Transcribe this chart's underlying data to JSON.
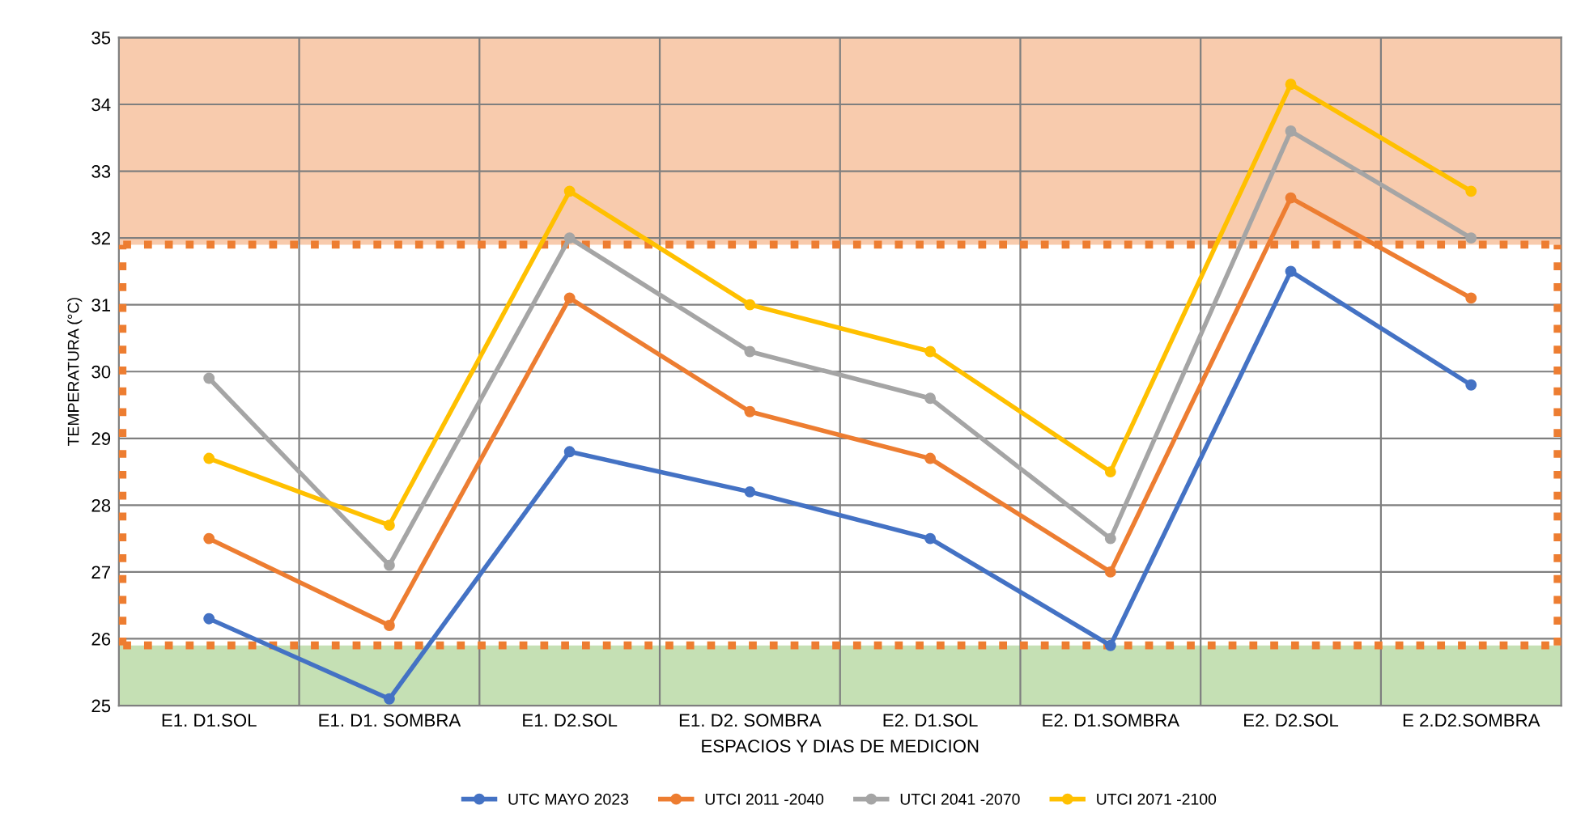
{
  "chart_data": {
    "type": "line",
    "xlabel": "ESPACIOS Y DIAS DE MEDICION",
    "ylabel": "TEMPERATURA (°C)",
    "categories": [
      "E1. D1.SOL",
      "E1. D1. SOMBRA",
      "E1. D2.SOL",
      "E1. D2. SOMBRA",
      "E2. D1.SOL",
      "E2. D1.SOMBRA",
      "E2. D2.SOL",
      "E 2.D2.SOMBRA"
    ],
    "series": [
      {
        "name": "UTC MAYO 2023",
        "color": "#4472c4",
        "values": [
          26.3,
          25.1,
          28.8,
          28.2,
          27.5,
          25.9,
          31.5,
          29.8
        ]
      },
      {
        "name": "UTCI 2011 -2040",
        "color": "#ed7d31",
        "values": [
          27.5,
          26.2,
          31.1,
          29.4,
          28.7,
          27.0,
          32.6,
          31.1
        ]
      },
      {
        "name": "UTCI 2041 -2070",
        "color": "#a5a5a5",
        "values": [
          29.9,
          27.1,
          32.0,
          30.3,
          29.6,
          27.5,
          33.6,
          32.0
        ]
      },
      {
        "name": "UTCI 2071 -2100",
        "color": "#ffc000",
        "values": [
          28.7,
          27.7,
          32.7,
          31.0,
          30.3,
          28.5,
          34.3,
          32.7
        ]
      }
    ],
    "bands": [
      {
        "axis": "y",
        "from": 25,
        "to": 25.9,
        "color": "#c5e0b4"
      },
      {
        "axis": "y",
        "from": 31.9,
        "to": 35,
        "color": "#f8cbad"
      }
    ],
    "ref_lines": [
      {
        "axis": "y",
        "value": 25.9,
        "color": "#ed7d31",
        "line_style": "dotted"
      },
      {
        "axis": "y",
        "value": 31.9,
        "color": "#ed7d31",
        "line_style": "dotted"
      }
    ],
    "ylim": [
      25,
      35
    ],
    "yticks": [
      25,
      26,
      27,
      28,
      29,
      30,
      31,
      32,
      33,
      34,
      35
    ],
    "grid": true,
    "legend": "bottom",
    "marker": "circle",
    "line_style": "solid"
  }
}
